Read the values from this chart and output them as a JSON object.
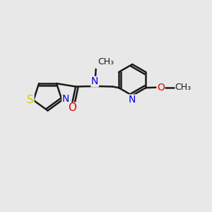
{
  "bg_color": "#e8e8e8",
  "bond_color": "#1a1a1a",
  "bond_width": 1.8,
  "atom_colors": {
    "S": "#cccc00",
    "N": "#0000ee",
    "O": "#ee0000",
    "C": "#1a1a1a"
  },
  "font_size": 10,
  "fig_size": [
    3.0,
    3.0
  ],
  "dpi": 100,
  "xlim": [
    0,
    10
  ],
  "ylim": [
    0,
    10
  ]
}
